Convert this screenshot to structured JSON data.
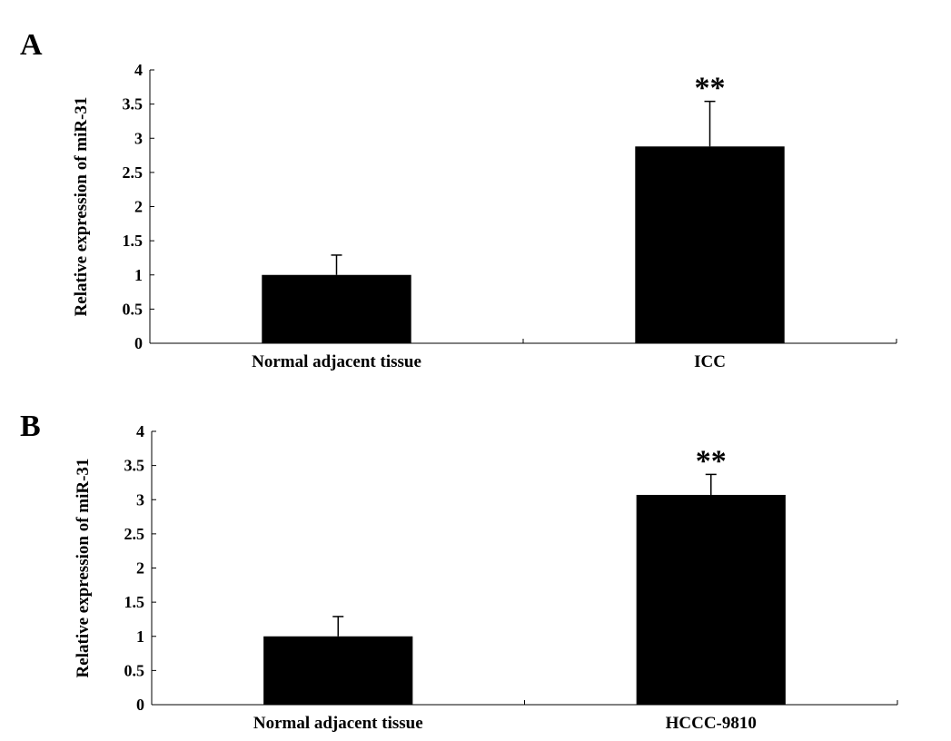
{
  "chart_data": [
    {
      "panel_label": "A",
      "type": "bar",
      "categories": [
        "Normal adjacent tissue",
        "ICC"
      ],
      "values": [
        1.0,
        2.88
      ],
      "errors": [
        0.29,
        0.66
      ],
      "annotations": [
        "",
        "**"
      ],
      "ylabel": "Relative expression of miR-31",
      "ylim": [
        0,
        4
      ],
      "yticks": [
        "0",
        "0.5",
        "1",
        "1.5",
        "2",
        "2.5",
        "3",
        "3.5",
        "4"
      ],
      "bar_color": "#000000",
      "grid": false
    },
    {
      "panel_label": "B",
      "type": "bar",
      "categories": [
        "Normal adjacent tissue",
        "HCCC-9810"
      ],
      "values": [
        1.0,
        3.07
      ],
      "errors": [
        0.29,
        0.3
      ],
      "annotations": [
        "",
        "**"
      ],
      "ylabel": "Relative expression of miR-31",
      "ylim": [
        0,
        4
      ],
      "yticks": [
        "0",
        "0.5",
        "1",
        "1.5",
        "2",
        "2.5",
        "3",
        "3.5",
        "4"
      ],
      "bar_color": "#000000",
      "grid": false
    }
  ]
}
